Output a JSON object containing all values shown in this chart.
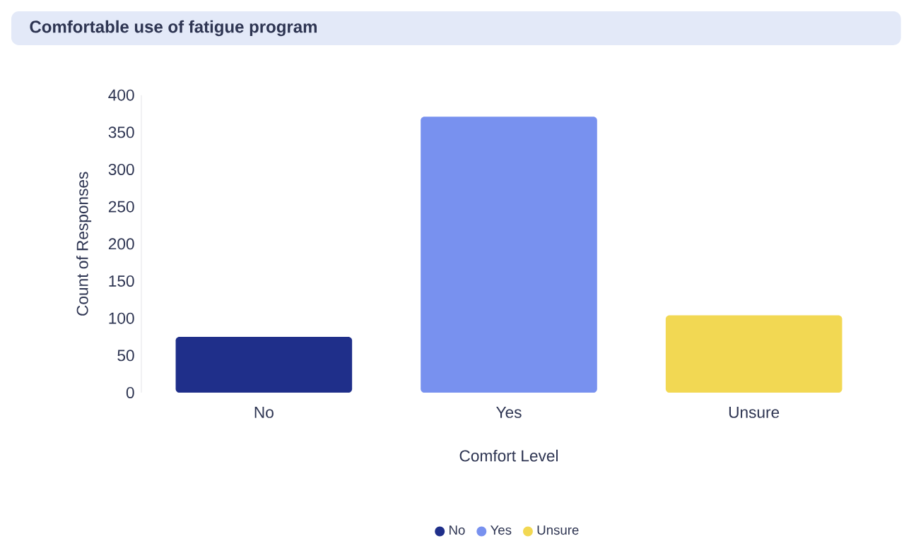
{
  "chart_data": {
    "type": "bar",
    "title": "Comfortable use of fatigue program",
    "categories": [
      "No",
      "Yes",
      "Unsure"
    ],
    "series": [
      {
        "name": "No",
        "color": "#1f2f8a",
        "values": [
          75,
          null,
          null
        ]
      },
      {
        "name": "Yes",
        "color": "#7891ef",
        "values": [
          null,
          371,
          null
        ]
      },
      {
        "name": "Unsure",
        "color": "#f2d853",
        "values": [
          null,
          null,
          104
        ]
      }
    ],
    "xlabel": "Comfort Level",
    "ylabel": "Count of Responses",
    "ylim": [
      0,
      400
    ],
    "yticks": [
      0,
      50,
      100,
      150,
      200,
      250,
      300,
      350,
      400
    ],
    "grid": false,
    "legend": "bottom"
  }
}
